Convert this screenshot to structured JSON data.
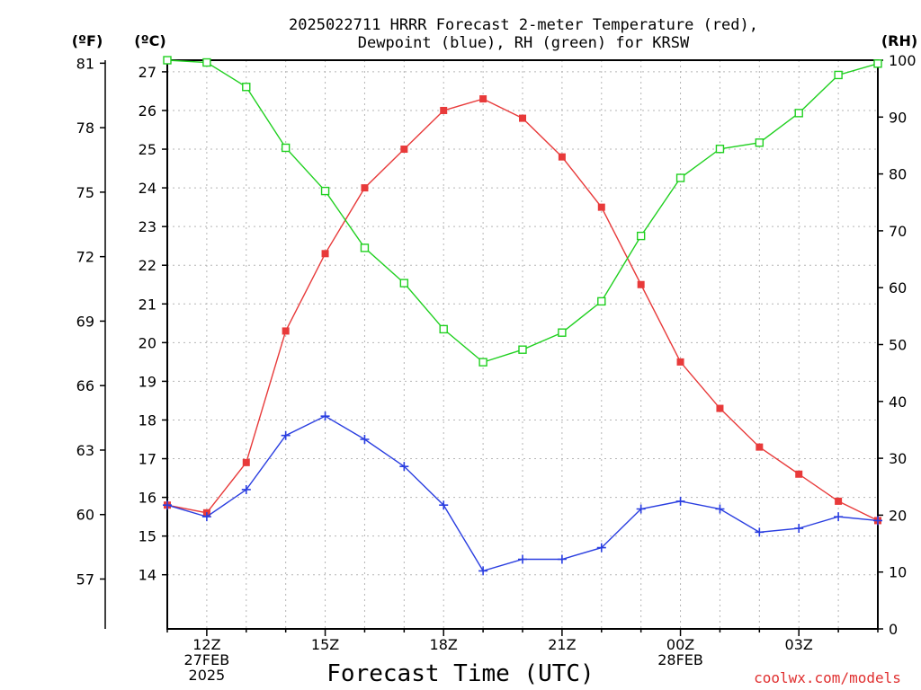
{
  "chart_data": {
    "type": "line",
    "title_line1": "2025022711 HRRR Forecast 2-meter Temperature (red),",
    "title_line2": "Dewpoint (blue), RH (green) for KRSW",
    "xlabel": "Forecast Time (UTC)",
    "credit": "coolwx.com/models",
    "units": {
      "fahrenheit": "(ºF)",
      "celsius": "(ºC)",
      "rh": "(RH)"
    },
    "x_hours": [
      11,
      12,
      13,
      14,
      15,
      16,
      17,
      18,
      19,
      20,
      21,
      22,
      23,
      24,
      25,
      26,
      27,
      28,
      29
    ],
    "x_ticks": [
      {
        "hour": 12,
        "lines": [
          "12Z",
          "27FEB",
          "2025"
        ]
      },
      {
        "hour": 15,
        "lines": [
          "15Z"
        ]
      },
      {
        "hour": 18,
        "lines": [
          "18Z"
        ]
      },
      {
        "hour": 21,
        "lines": [
          "21Z"
        ]
      },
      {
        "hour": 24,
        "lines": [
          "00Z",
          "28FEB"
        ]
      },
      {
        "hour": 27,
        "lines": [
          "03Z"
        ]
      }
    ],
    "x_range": [
      11,
      29
    ],
    "celsius_range": [
      12.6,
      27.3
    ],
    "celsius_ticks": [
      "14",
      "15",
      "16",
      "17",
      "18",
      "19",
      "20",
      "21",
      "22",
      "23",
      "24",
      "25",
      "26",
      "27"
    ],
    "fahrenheit_ticks": [
      "57",
      "60",
      "63",
      "66",
      "69",
      "72",
      "75",
      "78",
      "81"
    ],
    "rh_range": [
      0,
      100
    ],
    "rh_ticks": [
      "0",
      "10",
      "20",
      "30",
      "40",
      "50",
      "60",
      "70",
      "80",
      "90",
      "100"
    ],
    "grid": true,
    "series": [
      {
        "name": "Temperature",
        "color": "#e83a3a",
        "marker": "filled-square",
        "axis": "celsius",
        "values": [
          15.8,
          15.6,
          16.9,
          20.3,
          22.3,
          24.0,
          25.0,
          26.0,
          26.3,
          25.8,
          24.8,
          23.5,
          21.5,
          19.5,
          18.3,
          17.3,
          16.6,
          15.9,
          15.4
        ]
      },
      {
        "name": "Dewpoint",
        "color": "#2a3ee0",
        "marker": "plus",
        "axis": "celsius",
        "values": [
          15.8,
          15.5,
          16.2,
          17.6,
          18.1,
          17.5,
          16.8,
          15.8,
          14.1,
          14.4,
          14.4,
          14.7,
          15.7,
          15.9,
          15.7,
          15.1,
          15.2,
          15.5,
          15.4
        ]
      },
      {
        "name": "RH",
        "color": "#20d020",
        "marker": "open-square",
        "axis": "rh",
        "values": [
          100,
          99.6,
          95.3,
          84.6,
          77.0,
          67.0,
          60.8,
          52.7,
          46.9,
          49.1,
          52.1,
          57.6,
          69.1,
          79.3,
          84.4,
          85.5,
          90.7,
          97.4,
          99.4
        ]
      }
    ]
  }
}
